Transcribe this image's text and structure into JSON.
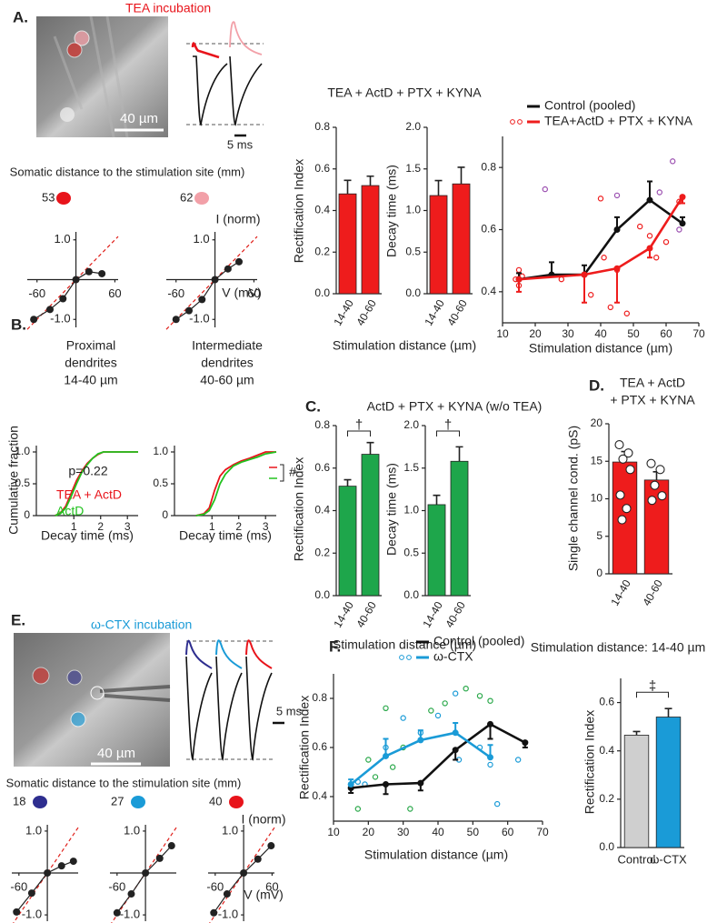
{
  "panel_labels": [
    "A.",
    "B.",
    "C.",
    "D.",
    "E.",
    "F."
  ],
  "panel_a": {
    "condition": "TEA  incubation",
    "scale_bar": "40 µm",
    "time_bar": "5 ms",
    "distance_heading": "Somatic distance to the stimulation site (mm)",
    "distances": [
      "53",
      "62"
    ]
  },
  "panel_e": {
    "condition": "ω-CTX incubation",
    "scale_bar": "40 µm",
    "time_bar": "5 ms",
    "distance_heading": "Somatic distance to the stimulation site (mm)",
    "distances": [
      "18",
      "27",
      "40"
    ]
  },
  "chart_data": [
    {
      "type": "iv",
      "x": [
        -65,
        -40,
        -20,
        0,
        20,
        40
      ],
      "values": [
        -1.0,
        -0.75,
        -0.48,
        0,
        0.2,
        0.15
      ],
      "color": "#222222",
      "reference_color": "#e0201b",
      "xlim": [
        -75,
        65
      ],
      "ylim": [
        -1.2,
        1.2
      ],
      "xticks": [
        -60,
        60
      ],
      "yticks": [
        {
          "value": 1,
          "label": "1.0"
        },
        {
          "value": -1,
          "label": "-1.0"
        }
      ]
    },
    {
      "type": "iv",
      "x": [
        -60,
        -40,
        -20,
        0,
        20,
        37
      ],
      "values": [
        -1.0,
        -0.78,
        -0.5,
        0,
        0.27,
        0.45
      ],
      "color": "#222222",
      "reference_color": "#e0201b",
      "xlim": [
        -75,
        65
      ],
      "ylim": [
        -1.2,
        1.2
      ],
      "xticks": [
        -60,
        60
      ],
      "yticks": [
        {
          "value": 1,
          "label": "1.0"
        },
        {
          "value": -1,
          "label": "-1.0"
        }
      ],
      "xlabel": "V (mV)",
      "ylabel": "I (norm)"
    },
    {
      "type": "bar",
      "title": "TEA + ActD + PTX + KYNA",
      "xlabel": "Stimulation distance (µm)",
      "ylabel": "Rectification Index",
      "categories": [
        "14-40",
        "40-60"
      ],
      "values": [
        0.48,
        0.52
      ],
      "errors": [
        0.065,
        0.045
      ],
      "color": "#ee1c1c",
      "ylim": [
        0,
        0.8
      ],
      "yticks": [
        {
          "value": 0,
          "label": "0.0"
        },
        0.2,
        0.4,
        0.6,
        0.8
      ]
    },
    {
      "type": "bar",
      "ylabel": "Decay time (ms)",
      "categories": [
        "14-40",
        "40-60"
      ],
      "values": [
        1.18,
        1.32
      ],
      "errors": [
        0.18,
        0.2
      ],
      "color": "#ee1c1c",
      "ylim": [
        0,
        2
      ],
      "yticks": [
        {
          "value": 0,
          "label": "0.0"
        },
        0.5,
        {
          "value": 1,
          "label": "1.0"
        },
        1.5,
        {
          "value": 2,
          "label": "2.0"
        }
      ]
    },
    {
      "type": "line",
      "xlabel": "Stimulation distance (µm)",
      "xlim": [
        10,
        70
      ],
      "ylim": [
        0.3,
        0.9
      ],
      "xticks": [
        10,
        20,
        30,
        40,
        50,
        60,
        70
      ],
      "yticks": [
        0.4,
        0.6,
        0.8
      ],
      "legend": "top-left",
      "series": [
        {
          "name": "Control (pooled)",
          "color": "#111111",
          "x": [
            15,
            25,
            35,
            45,
            55,
            65
          ],
          "values": [
            0.44,
            0.455,
            0.455,
            0.6,
            0.695,
            0.62
          ],
          "errors": [
            0.02,
            0.04,
            0.03,
            0.04,
            0.06,
            0.02
          ],
          "error_direction": "up"
        },
        {
          "name": "TEA+ActD + PTX + KYNA",
          "color": "#ee1c1c",
          "x": [
            15,
            35,
            45,
            55,
            65
          ],
          "values": [
            0.44,
            0.455,
            0.475,
            0.54,
            0.705
          ],
          "errors": [
            0.04,
            0.09,
            0.11,
            0.03,
            0.02
          ],
          "error_direction": "down"
        }
      ],
      "points": [
        {
          "color": "#ee1c1c",
          "x": [
            15,
            15,
            16,
            14,
            28,
            37,
            40,
            41,
            43,
            45,
            48,
            52,
            55,
            57,
            60,
            64
          ],
          "values": [
            0.47,
            0.42,
            0.45,
            0.44,
            0.44,
            0.39,
            0.7,
            0.51,
            0.35,
            0.47,
            0.33,
            0.61,
            0.58,
            0.51,
            0.56,
            0.69
          ]
        },
        {
          "color": "#9b4fb0",
          "x": [
            23,
            45,
            58,
            62,
            64
          ],
          "values": [
            0.73,
            0.71,
            0.72,
            0.82,
            0.6
          ]
        }
      ]
    },
    {
      "type": "cdf",
      "title": [
        "Proximal",
        "dendrites",
        "14-40 µm"
      ],
      "xlabel": "Decay time (ms)",
      "ylabel": "Cumulative fraction",
      "annotation": "p=0.22",
      "xlim": [
        -0.4,
        3.4
      ],
      "ylim": [
        0,
        1.1
      ],
      "xticks": [
        1,
        2,
        3
      ],
      "yticks": [
        0,
        0.5,
        {
          "value": 1,
          "label": "1.0"
        }
      ],
      "x": [
        0.3,
        0.5,
        0.7,
        0.9,
        1.1,
        1.3,
        1.5,
        1.7,
        1.9,
        2.1,
        3.4
      ],
      "series": [
        {
          "name": "TEA + ActD",
          "color": "#e8141b",
          "values": [
            0,
            0.04,
            0.15,
            0.35,
            0.55,
            0.7,
            0.82,
            0.9,
            0.96,
            1,
            1
          ]
        },
        {
          "name": "ActD",
          "color": "#22c21f",
          "values": [
            0,
            0.03,
            0.12,
            0.3,
            0.5,
            0.68,
            0.8,
            0.9,
            0.97,
            1,
            1
          ]
        }
      ]
    },
    {
      "type": "cdf",
      "title": [
        "Intermediate",
        "dendrites",
        "40-60 µm"
      ],
      "xlabel": "Decay time (ms)",
      "annotation": "#",
      "xlim": [
        -0.4,
        3.4
      ],
      "ylim": [
        0,
        1.1
      ],
      "xticks": [
        1,
        2,
        3
      ],
      "yticks": [
        0,
        0.5,
        {
          "value": 1,
          "label": "1.0"
        }
      ],
      "x": [
        0.4,
        0.7,
        0.9,
        1.1,
        1.3,
        1.5,
        1.8,
        2.1,
        2.4,
        2.7,
        3.0,
        3.4
      ],
      "series": [
        {
          "name": "TEA + ActD",
          "color": "#e8141b",
          "values": [
            0,
            0.03,
            0.12,
            0.4,
            0.62,
            0.72,
            0.8,
            0.86,
            0.9,
            0.95,
            1,
            1
          ]
        },
        {
          "name": "ActD",
          "color": "#22c21f",
          "values": [
            0,
            0.02,
            0.08,
            0.25,
            0.5,
            0.65,
            0.78,
            0.84,
            0.88,
            0.92,
            0.97,
            1
          ]
        }
      ]
    },
    {
      "type": "bar",
      "title": "ActD + PTX + KYNA (w/o TEA)",
      "xlabel": "Stimulation distance (µm)",
      "ylabel": "Rectification Index",
      "significance": "†",
      "categories": [
        "14-40",
        "40-60"
      ],
      "values": [
        0.515,
        0.665
      ],
      "errors": [
        0.03,
        0.055
      ],
      "color": "#1ea64b",
      "ylim": [
        0,
        0.8
      ],
      "yticks": [
        {
          "value": 0,
          "label": "0.0"
        },
        0.2,
        0.4,
        0.6,
        0.8
      ]
    },
    {
      "type": "bar",
      "ylabel": "Decay time (ms)",
      "significance": "†",
      "categories": [
        "14-40",
        "40-60"
      ],
      "values": [
        1.07,
        1.58
      ],
      "errors": [
        0.11,
        0.17
      ],
      "color": "#1ea64b",
      "ylim": [
        0,
        2
      ],
      "yticks": [
        {
          "value": 0,
          "label": "0.0"
        },
        0.5,
        {
          "value": 1,
          "label": "1.0"
        },
        1.5,
        {
          "value": 2,
          "label": "2.0"
        }
      ]
    },
    {
      "type": "bar",
      "title": [
        "TEA + ActD",
        "+ PTX + KYNA"
      ],
      "ylabel": "Single channel cond. (pS)",
      "categories": [
        "14-40",
        "40-60"
      ],
      "values": [
        14.9,
        12.5
      ],
      "errors": [
        1.4,
        1.1
      ],
      "color": "#ee1c1c",
      "points": [
        [
          17.2,
          16.1,
          15.3,
          13.9,
          10.5,
          8.7,
          7.2
        ],
        [
          14.7,
          13.9,
          11.8,
          10.4,
          9.8
        ]
      ],
      "ylim": [
        0,
        20
      ],
      "yticks": [
        0,
        5,
        10,
        15,
        20
      ]
    },
    {
      "type": "iv",
      "x": [
        -65,
        -33,
        0,
        30,
        55
      ],
      "values": [
        -0.93,
        -0.48,
        0,
        0.17,
        0.28
      ],
      "color": "#222222",
      "reference_color": "#e0201b",
      "xlim": [
        -75,
        65
      ],
      "ylim": [
        -1.15,
        1.15
      ],
      "xticks": [
        -60
      ],
      "yticks": [
        {
          "value": 1,
          "label": "1.0"
        },
        {
          "value": -1,
          "label": "-1.0"
        }
      ]
    },
    {
      "type": "iv",
      "x": [
        -60,
        -30,
        0,
        30,
        55
      ],
      "values": [
        -0.95,
        -0.5,
        0,
        0.35,
        0.65
      ],
      "color": "#222222",
      "reference_color": "#e0201b",
      "xlim": [
        -75,
        65
      ],
      "ylim": [
        -1.15,
        1.15
      ],
      "xticks": [
        -60
      ],
      "yticks": [
        {
          "value": 1,
          "label": "1.0"
        },
        {
          "value": -1,
          "label": "-1.0"
        }
      ]
    },
    {
      "type": "iv",
      "x": [
        -63,
        -35,
        0,
        30,
        58
      ],
      "values": [
        -0.95,
        -0.5,
        0,
        0.33,
        0.65
      ],
      "color": "#222222",
      "reference_color": "#e0201b",
      "xlim": [
        -75,
        65
      ],
      "ylim": [
        -1.15,
        1.15
      ],
      "xticks": [
        -60,
        60
      ],
      "yticks": [
        {
          "value": 1,
          "label": "1.0"
        },
        {
          "value": -1,
          "label": "-1.0"
        }
      ],
      "xlabel": "V (mV)",
      "ylabel": "I (norm)"
    },
    {
      "type": "line",
      "xlabel": "Stimulation distance (µm)",
      "ylabel": "Rectification Index",
      "xlim": [
        10,
        70
      ],
      "ylim": [
        0.3,
        0.9
      ],
      "xticks": [
        10,
        20,
        30,
        40,
        50,
        60,
        70
      ],
      "yticks": [
        0.4,
        0.6,
        0.8
      ],
      "legend": "top-left",
      "series": [
        {
          "name": "Control (pooled)",
          "color": "#111111",
          "x": [
            15,
            25,
            35,
            45,
            55,
            65
          ],
          "values": [
            0.435,
            0.45,
            0.455,
            0.59,
            0.695,
            0.62
          ],
          "errors": [
            0.02,
            0.04,
            0.03,
            0.04,
            0.06,
            0.02
          ],
          "error_direction": "down"
        },
        {
          "name": "ω-CTX",
          "color": "#1a9bd7",
          "x": [
            15,
            25,
            35,
            45,
            55
          ],
          "values": [
            0.45,
            0.565,
            0.63,
            0.66,
            0.56
          ],
          "errors": [
            0.02,
            0.07,
            0.04,
            0.04,
            0.05
          ],
          "error_direction": "up"
        }
      ],
      "points": [
        {
          "color": "#1a9bd7",
          "x": [
            17,
            19,
            25,
            30,
            35,
            40,
            45,
            46,
            52,
            55,
            57,
            63
          ],
          "values": [
            0.46,
            0.45,
            0.6,
            0.72,
            0.66,
            0.73,
            0.82,
            0.55,
            0.6,
            0.53,
            0.37,
            0.55
          ]
        },
        {
          "color": "#2aa84a",
          "x": [
            17,
            20,
            22,
            25,
            27,
            30,
            32,
            38,
            42,
            48,
            52,
            55
          ],
          "values": [
            0.35,
            0.55,
            0.48,
            0.76,
            0.52,
            0.6,
            0.35,
            0.75,
            0.78,
            0.84,
            0.81,
            0.79
          ]
        }
      ]
    },
    {
      "type": "bar",
      "title": "Stimulation distance: 14-40 µm",
      "ylabel": "Rectification Index",
      "significance": "‡",
      "categories": [
        "Control",
        "ω-CTX"
      ],
      "values": [
        0.465,
        0.54
      ],
      "errors": [
        0.015,
        0.035
      ],
      "colors": [
        "#cfcfcf",
        "#1a9bd7"
      ],
      "horizontal_labels": true,
      "ylim": [
        0,
        0.7
      ],
      "yticks": [
        {
          "value": 0,
          "label": "0.0"
        },
        0.2,
        0.4,
        0.6
      ]
    }
  ]
}
